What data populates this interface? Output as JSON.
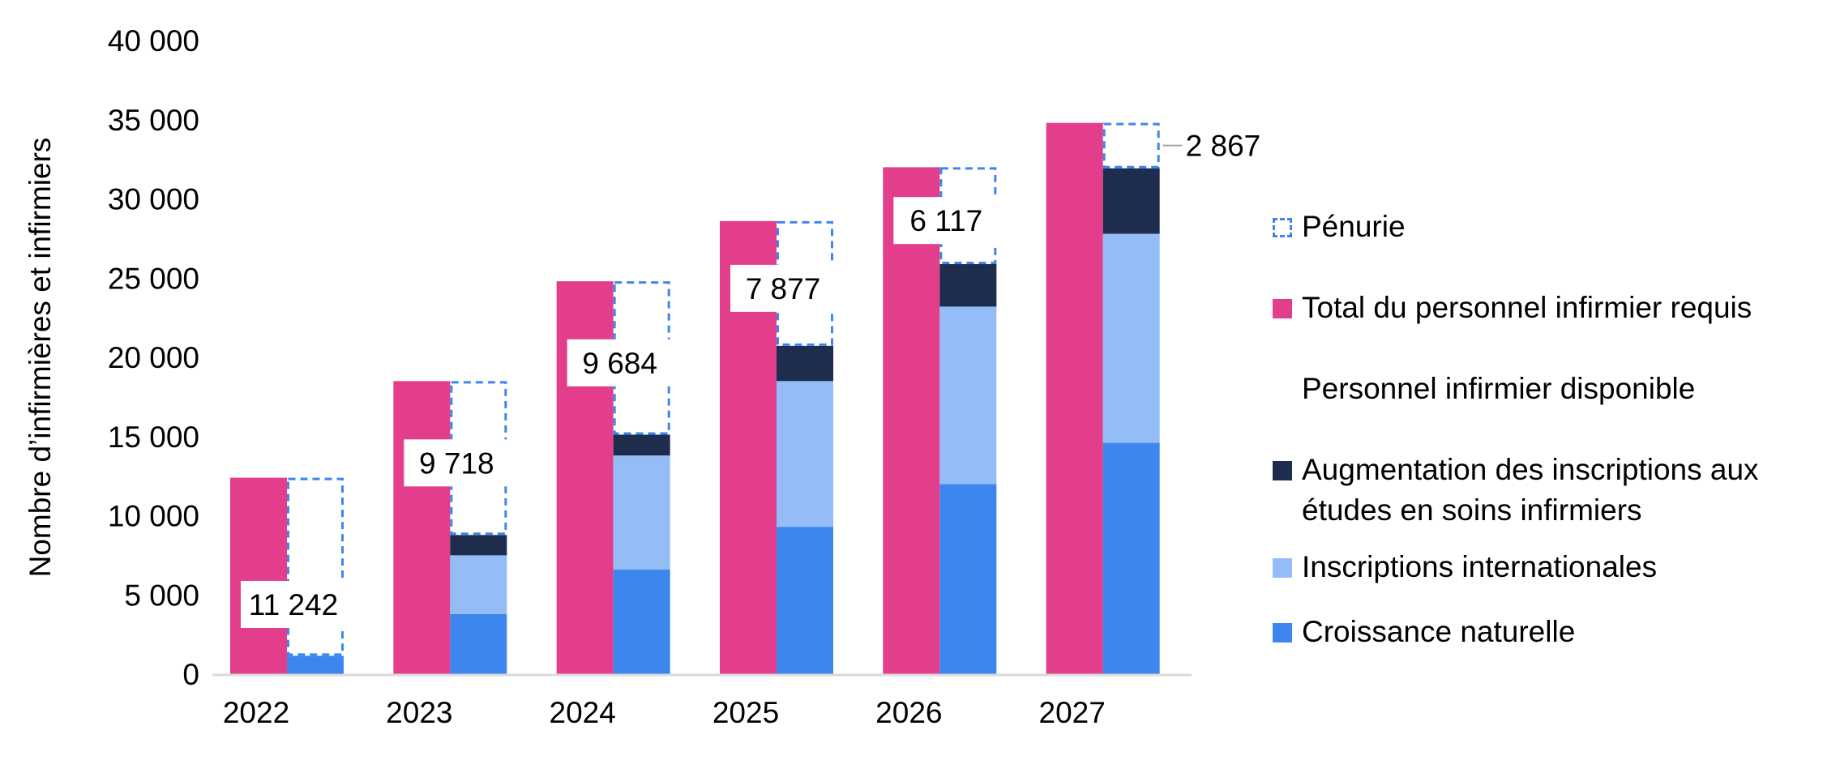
{
  "chart_data": {
    "type": "bar",
    "categories": [
      "2022",
      "2023",
      "2024",
      "2025",
      "2026",
      "2027"
    ],
    "ylabel": "Nombre d’infirmières et infirmiers",
    "ylim": [
      0,
      40000
    ],
    "yticks": [
      0,
      5000,
      10000,
      15000,
      20000,
      25000,
      30000,
      35000,
      40000
    ],
    "ytick_labels": [
      "0",
      "5 000",
      "10 000",
      "15 000",
      "20 000",
      "25 000",
      "30 000",
      "35 000",
      "40 000"
    ],
    "series": [
      {
        "name": "Total du personnel infirmier requis",
        "color": "#E23E8C",
        "stack": "requis",
        "values": [
          12400,
          18500,
          24800,
          28600,
          32000,
          34800
        ]
      },
      {
        "name": "Croissance naturelle",
        "color": "#3C86EE",
        "stack": "disponible",
        "values": [
          1158,
          3800,
          6600,
          9300,
          12000,
          14600
        ]
      },
      {
        "name": "Inscriptions internationales",
        "color": "#94BCF7",
        "stack": "disponible",
        "values": [
          0,
          3700,
          7200,
          9200,
          11200,
          13200
        ]
      },
      {
        "name": "Augmentation des inscriptions aux études en soins infirmiers",
        "color": "#1E2D4E",
        "stack": "disponible",
        "values": [
          0,
          1282,
          1316,
          2223,
          2683,
          4133
        ]
      },
      {
        "name": "Pénurie",
        "color": "#3C86EE",
        "stack": "disponible",
        "style": "dashed-outline",
        "values": [
          11242,
          9718,
          9684,
          7877,
          6117,
          2867
        ]
      }
    ],
    "data_labels": [
      "11 242",
      "9 718",
      "9 684",
      "7 877",
      "6 117",
      "2 867"
    ],
    "legend": {
      "position": "right",
      "items": [
        {
          "label": "Pénurie",
          "swatch": "dashed"
        },
        {
          "label": "Total du personnel infirmier requis",
          "swatch": "#E23E8C"
        },
        {
          "label": "Personnel infirmier disponible",
          "swatch": "none"
        },
        {
          "label": "Augmentation des inscriptions aux études en soins infirmiers",
          "swatch": "#1E2D4E"
        },
        {
          "label": "Inscriptions internationales",
          "swatch": "#94BCF7"
        },
        {
          "label": "Croissance naturelle",
          "swatch": "#3C86EE"
        }
      ]
    }
  }
}
